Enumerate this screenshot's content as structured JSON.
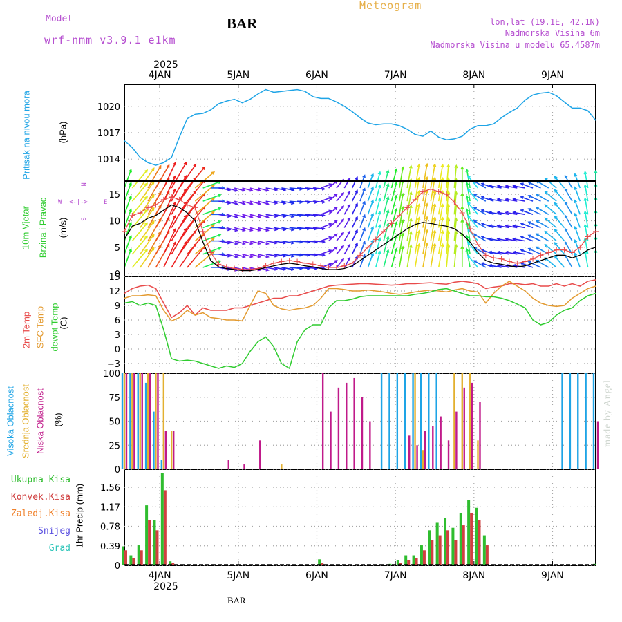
{
  "header": {
    "model_label": "Model",
    "model_name": "wrf-nmm_v3.9.1 e1km",
    "station": "BAR",
    "product": "Meteogram",
    "lonlat": "lon,lat (19.1E, 42.1N)",
    "elevation": "Nadmorska Visina 6m",
    "model_elevation": "Nadmorska Visina u modelu 65.4587m"
  },
  "footer": {
    "station": "BAR",
    "watermark": "made by Angel"
  },
  "time_axis": {
    "days": [
      "4JAN",
      "5JAN",
      "6JAN",
      "7JAN",
      "8JAN",
      "9JAN"
    ],
    "year": "2025"
  },
  "panels": {
    "pressure": {
      "label": "Pritisak na nivou mora",
      "unit": "(hPa)"
    },
    "wind": {
      "label1": "10m Vjetar",
      "label2": "Brzina i Pravac",
      "unit": "(m/s)",
      "compass": {
        "n": "N",
        "s": "S",
        "e": "E",
        "w": "W"
      }
    },
    "temp": {
      "label_t2": "2m Temp",
      "label_sfc": "SFC Temp",
      "label_dew": "dewpt Temp",
      "unit": "(C)"
    },
    "cloud": {
      "label_high": "Visoka Oblacnost",
      "label_mid": "Srednja Oblacnost",
      "label_low": "Niska Oblacnost",
      "unit": "(%)"
    },
    "precip": {
      "unit": "1hr Precip (mm)",
      "legend": [
        "Ukupna Kisa",
        "Konvek.Kisa",
        "Zaledj.Kisa",
        "Snijeg",
        "Grad"
      ]
    }
  },
  "colors": {
    "pressure": "#1ea4e6",
    "t2": "#e84a4a",
    "sfc": "#e39a2f",
    "dew": "#2fcc2f",
    "high_cloud": "#1ea4e6",
    "mid_cloud": "#e3b030",
    "low_cloud": "#c01a8a",
    "total_rain": "#2fbd2f",
    "conv_rain": "#d04040",
    "freez_rain": "#f0822c",
    "snow": "#5a50e0",
    "hail": "#2cc4b8",
    "wind_speed": "#000000",
    "gust": "#e84a4a"
  },
  "chart_data": [
    {
      "type": "line",
      "name": "Pritisak na nivou mora",
      "xlabel": "",
      "ylabel": "(hPa)",
      "ylim": [
        1011.5,
        1022.5
      ],
      "yticks": [
        "1014",
        "1017",
        "1020"
      ],
      "x_days": [
        3.55,
        3.65,
        3.75,
        3.85,
        3.95,
        4.05,
        4.15,
        4.25,
        4.35,
        4.45,
        4.55,
        4.65,
        4.75,
        4.85,
        4.95,
        5.05,
        5.15,
        5.25,
        5.35,
        5.45,
        5.55,
        5.65,
        5.75,
        5.85,
        5.95,
        6.05,
        6.15,
        6.25,
        6.35,
        6.45,
        6.55,
        6.65,
        6.75,
        6.85,
        6.95,
        7.05,
        7.15,
        7.25,
        7.35,
        7.45,
        7.55,
        7.65,
        7.75,
        7.85,
        7.95,
        8.05,
        8.15,
        8.25,
        8.35,
        8.45,
        8.55,
        8.65,
        8.75,
        8.85,
        8.95,
        9.05,
        9.15,
        9.25,
        9.35,
        9.45,
        9.55
      ],
      "values": [
        1016.1,
        1015.3,
        1014.2,
        1013.6,
        1013.3,
        1013.6,
        1014.2,
        1016.5,
        1018.6,
        1019.1,
        1019.2,
        1019.6,
        1020.3,
        1020.6,
        1020.8,
        1020.4,
        1020.8,
        1021.4,
        1021.9,
        1021.6,
        1021.7,
        1021.8,
        1021.9,
        1021.7,
        1021.1,
        1020.9,
        1020.9,
        1020.5,
        1020.0,
        1019.4,
        1018.7,
        1018.1,
        1017.9,
        1018.0,
        1018.0,
        1017.8,
        1017.4,
        1016.8,
        1016.6,
        1017.2,
        1016.5,
        1016.2,
        1016.3,
        1016.6,
        1017.4,
        1017.8,
        1017.8,
        1018.0,
        1018.7,
        1019.3,
        1019.8,
        1020.7,
        1021.3,
        1021.5,
        1021.6,
        1021.2,
        1020.5,
        1019.8,
        1019.8,
        1019.5,
        1018.4
      ]
    },
    {
      "type": "line",
      "name": "10m Vjetar Brzina i Pravac",
      "ylabel": "(m/s)",
      "ylim": [
        -0.5,
        17.5
      ],
      "yticks": [
        "0",
        "5",
        "10",
        "15"
      ],
      "x_days": [
        3.55,
        3.65,
        3.75,
        3.85,
        3.95,
        4.05,
        4.15,
        4.25,
        4.35,
        4.45,
        4.55,
        4.65,
        4.75,
        4.85,
        4.95,
        5.05,
        5.15,
        5.25,
        5.35,
        5.45,
        5.55,
        5.65,
        5.75,
        5.85,
        5.95,
        6.05,
        6.15,
        6.25,
        6.35,
        6.45,
        6.55,
        6.65,
        6.75,
        6.85,
        6.95,
        7.05,
        7.15,
        7.25,
        7.35,
        7.45,
        7.55,
        7.65,
        7.75,
        7.85,
        7.95,
        8.05,
        8.15,
        8.25,
        8.35,
        8.45,
        8.55,
        8.65,
        8.75,
        8.85,
        8.95,
        9.05,
        9.15,
        9.25,
        9.35,
        9.45,
        9.55
      ],
      "speed": [
        6.5,
        9.0,
        9.5,
        10.5,
        11.0,
        12.0,
        13.0,
        12.5,
        11.5,
        10.0,
        6.0,
        2.5,
        1.3,
        1.0,
        0.8,
        0.6,
        0.6,
        0.8,
        1.2,
        1.5,
        1.8,
        2.0,
        1.8,
        1.5,
        1.3,
        1.0,
        0.8,
        0.8,
        1.0,
        1.5,
        2.5,
        3.5,
        4.5,
        5.5,
        6.5,
        7.5,
        8.5,
        9.3,
        9.7,
        9.5,
        9.2,
        9.0,
        8.5,
        7.5,
        6.0,
        4.0,
        2.5,
        2.0,
        1.8,
        1.5,
        1.3,
        1.5,
        2.0,
        2.5,
        3.0,
        3.5,
        3.5,
        3.0,
        3.5,
        4.5,
        5.0
      ],
      "gust": [
        8.0,
        11.0,
        11.5,
        12.5,
        13.0,
        14.0,
        14.5,
        14.0,
        13.0,
        12.5,
        8.0,
        4.0,
        1.8,
        1.3,
        1.0,
        0.8,
        0.8,
        1.0,
        1.5,
        2.0,
        2.3,
        2.5,
        2.3,
        2.0,
        1.8,
        1.5,
        1.2,
        1.2,
        1.5,
        2.0,
        3.5,
        5.0,
        6.5,
        8.0,
        9.5,
        11.0,
        12.5,
        14.0,
        15.5,
        16.0,
        15.5,
        15.0,
        13.5,
        11.5,
        8.5,
        5.5,
        3.5,
        3.0,
        2.8,
        2.3,
        2.0,
        2.3,
        2.8,
        3.5,
        4.0,
        4.5,
        4.5,
        4.0,
        5.0,
        7.0,
        8.0
      ],
      "direction_deg": [
        200,
        220,
        215,
        210,
        210,
        205,
        210,
        215,
        220,
        230,
        250,
        270,
        280,
        285,
        285,
        285,
        285,
        285,
        280,
        280,
        280,
        275,
        275,
        275,
        275,
        250,
        230,
        220,
        210,
        205,
        200,
        200,
        195,
        195,
        195,
        190,
        190,
        190,
        190,
        190,
        190,
        185,
        185,
        180,
        170,
        140,
        120,
        110,
        100,
        100,
        100,
        100,
        110,
        115,
        120,
        130,
        140,
        150,
        160,
        170,
        180
      ]
    },
    {
      "type": "line",
      "name": "Temperature",
      "ylabel": "(C)",
      "ylim": [
        -5,
        15
      ],
      "yticks": [
        "−3",
        "0",
        "3",
        "6",
        "9",
        "12",
        "15"
      ],
      "x_days": [
        3.55,
        3.65,
        3.75,
        3.85,
        3.95,
        4.05,
        4.15,
        4.25,
        4.35,
        4.45,
        4.55,
        4.65,
        4.75,
        4.85,
        4.95,
        5.05,
        5.15,
        5.25,
        5.35,
        5.45,
        5.55,
        5.65,
        5.75,
        5.85,
        5.95,
        6.05,
        6.15,
        6.25,
        6.35,
        6.45,
        6.55,
        6.65,
        6.75,
        6.85,
        6.95,
        7.05,
        7.15,
        7.25,
        7.35,
        7.45,
        7.55,
        7.65,
        7.75,
        7.85,
        7.95,
        8.05,
        8.15,
        8.25,
        8.35,
        8.45,
        8.55,
        8.65,
        8.75,
        8.85,
        8.95,
        9.05,
        9.15,
        9.25,
        9.35,
        9.45,
        9.55
      ],
      "series": [
        {
          "name": "2m Temp",
          "values": [
            11.5,
            12.5,
            13.0,
            13.2,
            12.5,
            9.5,
            6.5,
            7.5,
            9.0,
            7.0,
            8.5,
            8.0,
            8.0,
            8.0,
            8.5,
            8.5,
            9.0,
            9.5,
            10.0,
            10.5,
            10.5,
            11.0,
            11.0,
            11.5,
            12.0,
            12.5,
            13.0,
            13.2,
            13.3,
            13.4,
            13.5,
            13.5,
            13.4,
            13.3,
            13.2,
            13.3,
            13.5,
            13.5,
            13.6,
            13.7,
            13.5,
            13.4,
            13.8,
            14.0,
            13.8,
            13.5,
            12.5,
            12.8,
            13.0,
            13.5,
            13.5,
            13.3,
            13.5,
            13.0,
            13.0,
            13.5,
            13.0,
            13.5,
            13.0,
            14.0,
            14.3
          ]
        },
        {
          "name": "SFC Temp",
          "values": [
            10.5,
            11.0,
            11.0,
            11.2,
            11.0,
            8.0,
            5.8,
            6.5,
            8.0,
            7.0,
            7.5,
            6.5,
            6.3,
            6.0,
            6.0,
            5.8,
            9.0,
            12.0,
            11.5,
            9.0,
            8.3,
            8.0,
            8.3,
            8.5,
            9.0,
            10.5,
            12.5,
            12.5,
            12.3,
            12.0,
            12.0,
            12.2,
            12.0,
            11.8,
            11.5,
            11.3,
            11.5,
            11.8,
            12.0,
            12.2,
            12.0,
            11.8,
            12.2,
            12.5,
            12.0,
            11.8,
            9.5,
            11.5,
            13.0,
            14.0,
            13.0,
            12.0,
            10.5,
            9.5,
            9.0,
            8.8,
            9.0,
            10.5,
            11.5,
            12.5,
            13.0
          ]
        },
        {
          "name": "dewpt Temp",
          "values": [
            9.5,
            9.8,
            9.0,
            9.5,
            9.0,
            4.0,
            -2.0,
            -2.5,
            -2.3,
            -2.5,
            -3.0,
            -3.5,
            -4.0,
            -3.5,
            -3.8,
            -3.0,
            -0.5,
            1.5,
            2.5,
            0.5,
            -3.0,
            -4.0,
            1.5,
            4.0,
            5.0,
            5.0,
            8.5,
            10.0,
            10.0,
            10.3,
            10.8,
            11.0,
            11.0,
            11.0,
            11.0,
            11.0,
            11.0,
            11.3,
            11.5,
            11.8,
            12.3,
            12.5,
            12.0,
            11.5,
            11.0,
            11.0,
            10.8,
            10.8,
            10.5,
            10.0,
            9.3,
            8.5,
            6.0,
            5.0,
            5.5,
            7.0,
            8.0,
            8.5,
            10.0,
            11.0,
            11.5
          ]
        }
      ]
    },
    {
      "type": "bar",
      "name": "Oblacnost",
      "ylabel": "(%)",
      "ylim": [
        0,
        100
      ],
      "yticks": [
        "0",
        "25",
        "50",
        "75",
        "100"
      ],
      "x_days": [
        3.55,
        3.65,
        3.75,
        3.85,
        3.95,
        4.05,
        4.15,
        4.25,
        4.35,
        4.45,
        4.55,
        4.65,
        4.75,
        4.85,
        4.95,
        5.05,
        5.15,
        5.25,
        5.35,
        5.45,
        5.55,
        5.65,
        5.75,
        5.85,
        5.95,
        6.05,
        6.15,
        6.25,
        6.35,
        6.45,
        6.55,
        6.65,
        6.75,
        6.85,
        6.95,
        7.05,
        7.15,
        7.25,
        7.35,
        7.45,
        7.55,
        7.65,
        7.75,
        7.85,
        7.95,
        8.05,
        8.15,
        8.25,
        8.35,
        8.45,
        8.55,
        8.65,
        8.75,
        8.85,
        8.95,
        9.05,
        9.15,
        9.25,
        9.35,
        9.45,
        9.55
      ],
      "series": [
        {
          "name": "Visoka Oblacnost",
          "values": [
            100,
            100,
            100,
            90,
            60,
            10,
            0,
            0,
            0,
            0,
            0,
            0,
            0,
            0,
            0,
            0,
            0,
            0,
            0,
            0,
            0,
            0,
            0,
            0,
            0,
            0,
            0,
            0,
            0,
            0,
            0,
            0,
            0,
            100,
            100,
            100,
            100,
            100,
            100,
            100,
            100,
            0,
            0,
            0,
            0,
            0,
            0,
            0,
            0,
            0,
            0,
            0,
            0,
            0,
            0,
            0,
            100,
            100,
            100,
            100,
            100
          ]
        },
        {
          "name": "Srednja Oblacnost",
          "values": [
            100,
            100,
            100,
            100,
            100,
            100,
            40,
            0,
            0,
            0,
            0,
            0,
            0,
            0,
            0,
            0,
            0,
            0,
            0,
            0,
            5,
            0,
            0,
            0,
            0,
            0,
            0,
            0,
            0,
            0,
            0,
            0,
            0,
            0,
            0,
            0,
            0,
            100,
            20,
            0,
            0,
            0,
            100,
            100,
            100,
            30,
            0,
            0,
            0,
            0,
            0,
            0,
            0,
            0,
            0,
            0,
            0,
            0,
            0,
            0,
            0
          ]
        },
        {
          "name": "Niska Oblacnost",
          "values": [
            100,
            100,
            100,
            100,
            100,
            40,
            40,
            0,
            0,
            0,
            0,
            0,
            0,
            10,
            0,
            5,
            0,
            30,
            0,
            0,
            0,
            0,
            0,
            0,
            0,
            100,
            60,
            85,
            90,
            95,
            75,
            50,
            0,
            0,
            0,
            0,
            35,
            25,
            40,
            45,
            55,
            30,
            60,
            85,
            90,
            70,
            0,
            0,
            0,
            0,
            0,
            0,
            0,
            0,
            0,
            0,
            0,
            0,
            0,
            0,
            50
          ]
        }
      ]
    },
    {
      "type": "bar",
      "name": "1hr Precip",
      "ylabel": "1hr Precip (mm)",
      "ylim": [
        0,
        1.92
      ],
      "yticks": [
        "0",
        "0.39",
        "0.78",
        "1.17",
        "1.56"
      ],
      "x_days": [
        3.55,
        3.65,
        3.75,
        3.85,
        3.95,
        4.05,
        4.15,
        4.25,
        4.35,
        4.45,
        4.55,
        4.65,
        4.75,
        4.85,
        4.95,
        5.05,
        5.15,
        5.25,
        5.35,
        5.45,
        5.55,
        5.65,
        5.75,
        5.85,
        5.95,
        6.05,
        6.15,
        6.25,
        6.35,
        6.45,
        6.55,
        6.65,
        6.75,
        6.85,
        6.95,
        7.05,
        7.15,
        7.25,
        7.35,
        7.45,
        7.55,
        7.65,
        7.75,
        7.85,
        7.95,
        8.05,
        8.15,
        8.25,
        8.35,
        8.45,
        8.55,
        8.65,
        8.75,
        8.85,
        8.95,
        9.05,
        9.15,
        9.25,
        9.35,
        9.45,
        9.55
      ],
      "series": [
        {
          "name": "Ukupna Kisa",
          "values": [
            0.38,
            0.2,
            0.4,
            1.2,
            0.9,
            1.85,
            0.08,
            0.01,
            0.0,
            0.0,
            0.0,
            0.0,
            0.0,
            0.0,
            0.0,
            0.0,
            0.0,
            0.0,
            0.0,
            0.0,
            0.0,
            0.0,
            0.0,
            0.0,
            0.0,
            0.12,
            0.0,
            0.0,
            0.0,
            0.0,
            0.0,
            0.0,
            0.0,
            0.0,
            0.03,
            0.1,
            0.2,
            0.2,
            0.4,
            0.7,
            0.85,
            0.95,
            0.75,
            1.05,
            1.3,
            1.15,
            0.6,
            0.0,
            0.0,
            0.0,
            0.0,
            0.0,
            0.0,
            0.0,
            0.0,
            0.0,
            0.0,
            0.0,
            0.0,
            0.0,
            0.03
          ]
        },
        {
          "name": "Konvek.Kisa",
          "values": [
            0.3,
            0.15,
            0.3,
            0.9,
            0.7,
            1.5,
            0.05,
            0.0,
            0.0,
            0.0,
            0.0,
            0.0,
            0.0,
            0.0,
            0.0,
            0.0,
            0.0,
            0.0,
            0.0,
            0.0,
            0.0,
            0.0,
            0.0,
            0.0,
            0.0,
            0.05,
            0.0,
            0.0,
            0.0,
            0.0,
            0.0,
            0.0,
            0.0,
            0.0,
            0.0,
            0.05,
            0.1,
            0.15,
            0.3,
            0.5,
            0.6,
            0.7,
            0.5,
            0.8,
            1.05,
            0.9,
            0.4,
            0.0,
            0.0,
            0.0,
            0.0,
            0.0,
            0.0,
            0.0,
            0.0,
            0.0,
            0.0,
            0.0,
            0.0,
            0.0,
            0.0
          ]
        }
      ]
    }
  ]
}
